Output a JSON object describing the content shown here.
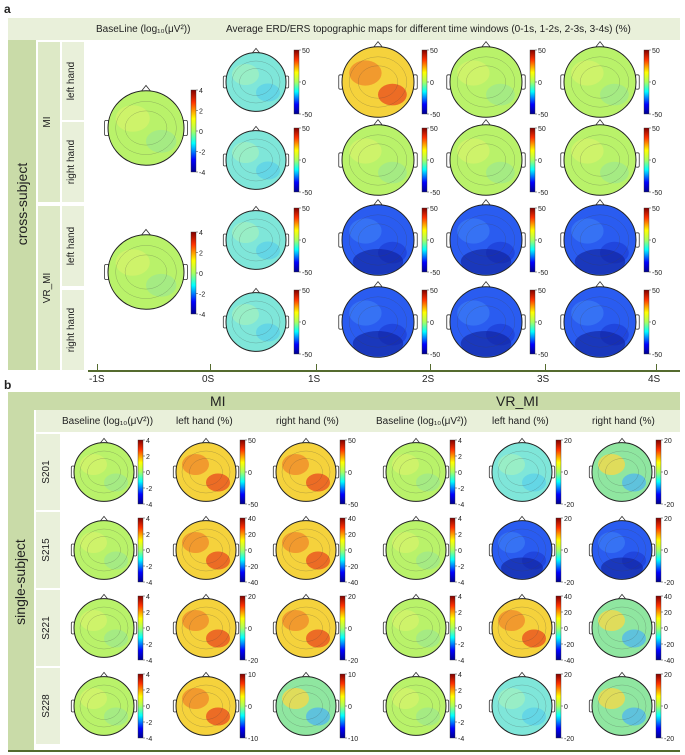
{
  "panel_a": {
    "letter": "a",
    "baseline_title": "BaseLine (log₁₀(μV²))",
    "erd_title": "Average ERD/ERS topographic maps for different time windows (0-1s, 1-2s, 2-3s, 3-4s) (%)",
    "group_label": "cross-subject",
    "conditions": [
      "MI",
      "VR_MI"
    ],
    "hands": [
      "left hand",
      "right hand"
    ],
    "baseline_ticks": [
      "4",
      "2",
      "0",
      "-2",
      "-4"
    ],
    "erd_ticks": [
      "50",
      "0",
      "-50"
    ],
    "time_ticks": [
      "-1S",
      "0S",
      "1S",
      "2S",
      "3S",
      "4S"
    ]
  },
  "panel_b": {
    "letter": "b",
    "group_label": "single-subject",
    "conditions": [
      "MI",
      "VR_MI"
    ],
    "column_titles": [
      "Baseline (log₁₀(μV²))",
      "left hand (%)",
      "right hand (%)",
      "Baseline (log₁₀(μV²))",
      "left hand (%)",
      "right hand (%)"
    ],
    "subjects": [
      "S201",
      "S215",
      "S221",
      "S228"
    ],
    "baseline_ticks": [
      "4",
      "2",
      "0",
      "-2",
      "-4"
    ],
    "colorbar_ticks": [
      [
        [
          "4",
          "2",
          "0",
          "-2",
          "-4"
        ],
        [
          "50",
          "0",
          "-50"
        ],
        [
          "50",
          "0",
          "-50"
        ],
        [
          "4",
          "2",
          "0",
          "-2",
          "-4"
        ],
        [
          "20",
          "0",
          "-20"
        ],
        [
          "20",
          "0",
          "-20"
        ]
      ],
      [
        [
          "4",
          "2",
          "0",
          "-2",
          "-4"
        ],
        [
          "40",
          "20",
          "0",
          "-20",
          "-40"
        ],
        [
          "40",
          "20",
          "0",
          "-20",
          "-40"
        ],
        [
          "4",
          "2",
          "0",
          "-2",
          "-4"
        ],
        [
          "20",
          "0",
          "-20"
        ],
        [
          "20",
          "0",
          "-20"
        ]
      ],
      [
        [
          "4",
          "2",
          "0",
          "-2",
          "-4"
        ],
        [
          "20",
          "0",
          "-20"
        ],
        [
          "20",
          "0",
          "-20"
        ],
        [
          "4",
          "2",
          "0",
          "-2",
          "-4"
        ],
        [
          "40",
          "20",
          "0",
          "-20",
          "-40"
        ],
        [
          "40",
          "20",
          "0",
          "-20",
          "-40"
        ]
      ],
      [
        [
          "4",
          "2",
          "0",
          "-2",
          "-4"
        ],
        [
          "10",
          "0",
          "-10"
        ],
        [
          "10",
          "0",
          "-10"
        ],
        [
          "4",
          "2",
          "0",
          "-2",
          "-4"
        ],
        [
          "20",
          "0",
          "-20"
        ],
        [
          "20",
          "0",
          "-20"
        ]
      ]
    ]
  },
  "colors": {
    "header_bar": "#c9dba8",
    "side_bar": "#dde9c6",
    "axis": "#556b2f"
  }
}
